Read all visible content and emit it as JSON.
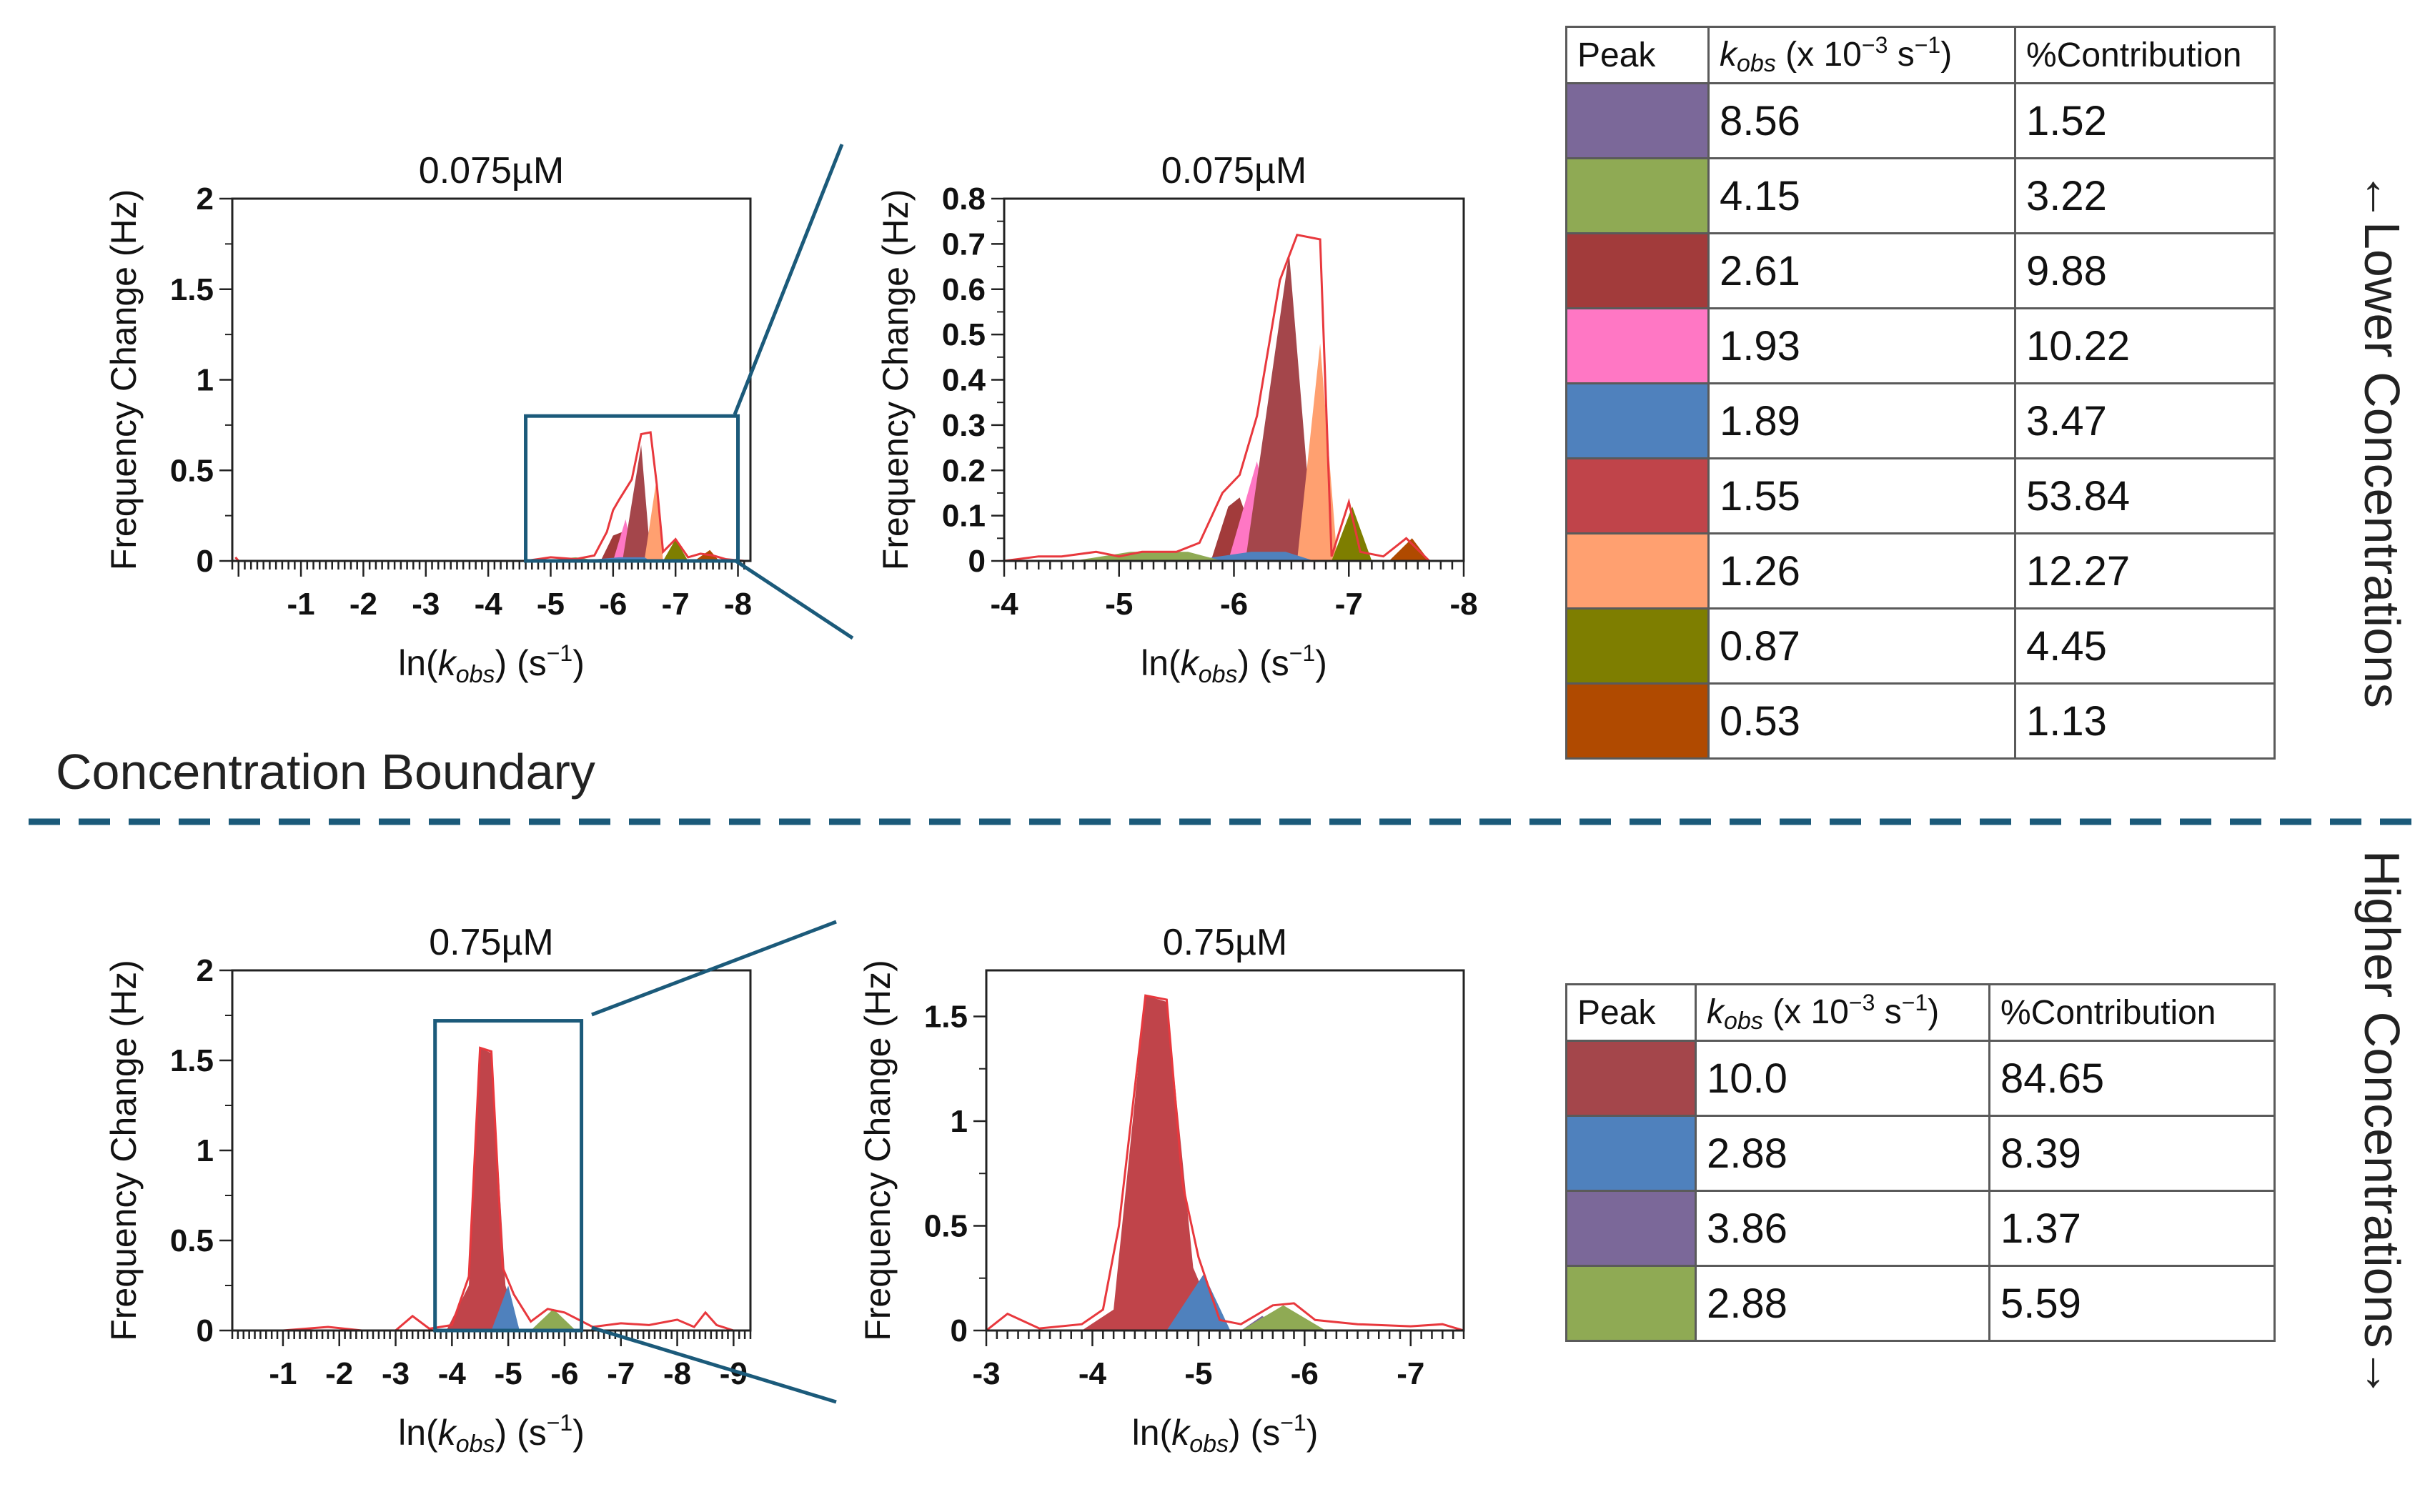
{
  "boundary_label": "Concentration Boundary",
  "side_labels": {
    "lower": "Lower Concentrations",
    "higher": "Higher Concentrations"
  },
  "axis_labels": {
    "ylabel": "Frequency Change (Hz)",
    "xlabel_prefix": "ln(",
    "xlabel_var": "k",
    "xlabel_sub": "obs",
    "xlabel_suffix": ") (s",
    "xlabel_exp": "−1",
    "xlabel_close": ")"
  },
  "tables": {
    "lower": {
      "headers": {
        "peak": "Peak",
        "k_var": "k",
        "k_sub": "obs",
        "k_unit_a": " (x 10",
        "k_exp": "−3",
        "k_unit_b": " s",
        "k_exp2": "−1",
        "k_close": ")",
        "contribution": "%Contribution"
      },
      "rows": [
        {
          "color": "#7b6899",
          "k": "8.56",
          "pct": "1.52"
        },
        {
          "color": "#8faa54",
          "k": "4.15",
          "pct": "3.22"
        },
        {
          "color": "#a23b3b",
          "k": "2.61",
          "pct": "9.88"
        },
        {
          "color": "#ff77c4",
          "k": "1.93",
          "pct": "10.22"
        },
        {
          "color": "#4f81bd",
          "k": "1.89",
          "pct": "3.47"
        },
        {
          "color": "#c0444a",
          "k": "1.55",
          "pct": "53.84"
        },
        {
          "color": "#ffa070",
          "k": "1.26",
          "pct": "12.27"
        },
        {
          "color": "#7e7e00",
          "k": "0.87",
          "pct": "4.45"
        },
        {
          "color": "#b04a00",
          "k": "0.53",
          "pct": "1.13"
        }
      ]
    },
    "higher": {
      "headers": {
        "peak": "Peak",
        "k_var": "k",
        "k_sub": "obs",
        "k_unit_a": " (x 10",
        "k_exp": "−3",
        "k_unit_b": " s",
        "k_exp2": "−1",
        "k_close": ")",
        "contribution": "%Contribution"
      },
      "rows": [
        {
          "color": "#a4464b",
          "k": "10.0",
          "pct": "84.65"
        },
        {
          "color": "#4f81bd",
          "k": "2.88",
          "pct": "8.39"
        },
        {
          "color": "#7b6899",
          "k": "3.86",
          "pct": "1.37"
        },
        {
          "color": "#8faa54",
          "k": "2.88",
          "pct": "5.59"
        }
      ]
    }
  },
  "chart_data": [
    {
      "id": "low_full",
      "type": "area",
      "title": "0.075µM",
      "xlim": [
        0.1,
        -8.2
      ],
      "ylim": [
        0,
        2
      ],
      "xticks": [
        -1,
        -2,
        -3,
        -4,
        -5,
        -6,
        -7,
        -8
      ],
      "yticks": [
        0,
        0.5,
        1,
        1.5,
        2
      ],
      "xtick_labels": [
        "-1",
        "-2",
        "-3",
        "-4",
        "-5",
        "-6",
        "-7",
        "-8"
      ],
      "ytick_labels": [
        "0",
        "0.5",
        "1",
        "1.5",
        "2"
      ],
      "zoom_box": {
        "x": [
          -4.6,
          -8.0
        ],
        "y": [
          0,
          0.8
        ]
      },
      "envelope": {
        "color": "#e8383d",
        "points": [
          [
            0.05,
            0.02
          ],
          [
            0.0,
            0
          ],
          [
            -4.6,
            0
          ],
          [
            -5.0,
            0.02
          ],
          [
            -5.4,
            0.01
          ],
          [
            -5.7,
            0.03
          ],
          [
            -5.9,
            0.16
          ],
          [
            -6.0,
            0.28
          ],
          [
            -6.1,
            0.34
          ],
          [
            -6.3,
            0.45
          ],
          [
            -6.45,
            0.7
          ],
          [
            -6.6,
            0.71
          ],
          [
            -6.7,
            0.42
          ],
          [
            -6.8,
            0.05
          ],
          [
            -7.0,
            0.12
          ],
          [
            -7.2,
            0.02
          ],
          [
            -7.4,
            0.04
          ],
          [
            -7.6,
            0.03
          ],
          [
            -7.8,
            0.01
          ],
          [
            -8.1,
            0
          ]
        ]
      },
      "peaks": [
        {
          "color": "#a23b3b",
          "points": [
            [
              -5.8,
              0
            ],
            [
              -6.0,
              0.14
            ],
            [
              -6.15,
              0.16
            ],
            [
              -6.25,
              0
            ]
          ]
        },
        {
          "color": "#ff77c4",
          "points": [
            [
              -6.0,
              0
            ],
            [
              -6.2,
              0.23
            ],
            [
              -6.35,
              0
            ]
          ]
        },
        {
          "color": "#a4464b",
          "points": [
            [
              -6.15,
              0
            ],
            [
              -6.45,
              0.64
            ],
            [
              -6.6,
              0.02
            ]
          ]
        },
        {
          "color": "#ffa070",
          "points": [
            [
              -6.5,
              0
            ],
            [
              -6.7,
              0.46
            ],
            [
              -6.8,
              0
            ]
          ]
        },
        {
          "color": "#4f81bd",
          "points": [
            [
              -5.4,
              0
            ],
            [
              -6.1,
              0.02
            ],
            [
              -6.5,
              0.02
            ],
            [
              -6.6,
              0
            ]
          ]
        },
        {
          "color": "#8faa54",
          "points": [
            [
              -4.8,
              0
            ],
            [
              -5.4,
              0.02
            ],
            [
              -5.8,
              0
            ]
          ]
        },
        {
          "color": "#7e7e00",
          "points": [
            [
              -6.8,
              0
            ],
            [
              -7.0,
              0.12
            ],
            [
              -7.2,
              0
            ]
          ]
        },
        {
          "color": "#b04a00",
          "points": [
            [
              -7.3,
              0
            ],
            [
              -7.55,
              0.06
            ],
            [
              -7.7,
              0
            ]
          ]
        }
      ]
    },
    {
      "id": "low_zoom",
      "type": "area",
      "title": "0.075µM",
      "xlim": [
        -4.0,
        -8.0
      ],
      "ylim": [
        0,
        0.8
      ],
      "xticks": [
        -4,
        -5,
        -6,
        -7,
        -8
      ],
      "yticks": [
        0,
        0.1,
        0.2,
        0.3,
        0.4,
        0.5,
        0.6,
        0.7,
        0.8
      ],
      "xtick_labels": [
        "-4",
        "-5",
        "-6",
        "-7",
        "-8"
      ],
      "ytick_labels": [
        "0",
        "0.1",
        "0.2",
        "0.3",
        "0.4",
        "0.5",
        "0.6",
        "0.7",
        "0.8"
      ],
      "envelope": {
        "color": "#e8383d",
        "points": [
          [
            -4.0,
            0
          ],
          [
            -4.3,
            0.01
          ],
          [
            -4.5,
            0.01
          ],
          [
            -4.8,
            0.02
          ],
          [
            -5.0,
            0.01
          ],
          [
            -5.2,
            0.02
          ],
          [
            -5.5,
            0.02
          ],
          [
            -5.7,
            0.04
          ],
          [
            -5.9,
            0.15
          ],
          [
            -6.05,
            0.19
          ],
          [
            -6.2,
            0.32
          ],
          [
            -6.4,
            0.62
          ],
          [
            -6.55,
            0.72
          ],
          [
            -6.75,
            0.71
          ],
          [
            -6.85,
            0.01
          ],
          [
            -7.0,
            0.13
          ],
          [
            -7.1,
            0.02
          ],
          [
            -7.3,
            0.01
          ],
          [
            -7.5,
            0.05
          ],
          [
            -7.7,
            0
          ],
          [
            -8.0,
            0
          ]
        ]
      },
      "peaks": [
        {
          "color": "#a23b3b",
          "points": [
            [
              -5.8,
              0
            ],
            [
              -5.95,
              0.12
            ],
            [
              -6.05,
              0.14
            ],
            [
              -6.25,
              0
            ]
          ]
        },
        {
          "color": "#ff77c4",
          "points": [
            [
              -5.95,
              0
            ],
            [
              -6.2,
              0.22
            ],
            [
              -6.4,
              0
            ]
          ]
        },
        {
          "color": "#a4464b",
          "points": [
            [
              -6.1,
              0
            ],
            [
              -6.48,
              0.68
            ],
            [
              -6.7,
              0
            ]
          ]
        },
        {
          "color": "#ffa070",
          "points": [
            [
              -6.55,
              0
            ],
            [
              -6.75,
              0.48
            ],
            [
              -6.9,
              0
            ]
          ]
        },
        {
          "color": "#4f81bd",
          "points": [
            [
              -5.6,
              0
            ],
            [
              -6.15,
              0.02
            ],
            [
              -6.45,
              0.02
            ],
            [
              -6.7,
              0
            ]
          ]
        },
        {
          "color": "#8faa54",
          "points": [
            [
              -4.6,
              0
            ],
            [
              -5.1,
              0.02
            ],
            [
              -5.6,
              0.02
            ],
            [
              -5.9,
              0
            ]
          ]
        },
        {
          "color": "#7e7e00",
          "points": [
            [
              -6.85,
              0
            ],
            [
              -7.03,
              0.12
            ],
            [
              -7.2,
              0
            ]
          ]
        },
        {
          "color": "#b04a00",
          "points": [
            [
              -7.35,
              0
            ],
            [
              -7.55,
              0.05
            ],
            [
              -7.7,
              0
            ]
          ]
        }
      ]
    },
    {
      "id": "high_full",
      "type": "area",
      "title": "0.75µM",
      "xlim": [
        -0.1,
        -9.3
      ],
      "ylim": [
        0,
        2
      ],
      "xticks": [
        -1,
        -2,
        -3,
        -4,
        -5,
        -6,
        -7,
        -8,
        -9
      ],
      "yticks": [
        0,
        0.5,
        1,
        1.5,
        2
      ],
      "xtick_labels": [
        "-1",
        "-2",
        "-3",
        "-4",
        "-5",
        "-6",
        "-7",
        "-8",
        "-9"
      ],
      "ytick_labels": [
        "0",
        "0.5",
        "1",
        "1.5",
        "2"
      ],
      "zoom_box": {
        "x": [
          -3.7,
          -6.3
        ],
        "y": [
          0,
          1.72
        ]
      },
      "envelope": {
        "color": "#e8383d",
        "points": [
          [
            -0.1,
            0
          ],
          [
            -1.0,
            0
          ],
          [
            -1.8,
            0.02
          ],
          [
            -2.4,
            0
          ],
          [
            -3.0,
            0
          ],
          [
            -3.3,
            0.08
          ],
          [
            -3.6,
            0.01
          ],
          [
            -4.0,
            0.03
          ],
          [
            -4.3,
            0.3
          ],
          [
            -4.5,
            1.57
          ],
          [
            -4.7,
            1.55
          ],
          [
            -4.9,
            0.35
          ],
          [
            -5.1,
            0.2
          ],
          [
            -5.4,
            0.05
          ],
          [
            -5.7,
            0.12
          ],
          [
            -6.0,
            0.1
          ],
          [
            -6.5,
            0.02
          ],
          [
            -7.0,
            0.04
          ],
          [
            -7.5,
            0.03
          ],
          [
            -8.0,
            0.06
          ],
          [
            -8.3,
            0.02
          ],
          [
            -8.5,
            0.1
          ],
          [
            -8.7,
            0.03
          ],
          [
            -9.0,
            0
          ]
        ]
      },
      "peaks": [
        {
          "color": "#c0444a",
          "points": [
            [
              -3.9,
              0
            ],
            [
              -4.3,
              0.25
            ],
            [
              -4.5,
              1.57
            ],
            [
              -4.7,
              1.54
            ],
            [
              -4.95,
              0.25
            ],
            [
              -5.2,
              0
            ]
          ]
        },
        {
          "color": "#4f81bd",
          "points": [
            [
              -4.7,
              0
            ],
            [
              -5.0,
              0.25
            ],
            [
              -5.2,
              0
            ]
          ]
        },
        {
          "color": "#7b6899",
          "points": [
            [
              -5.4,
              0
            ],
            [
              -5.6,
              0.06
            ],
            [
              -5.8,
              0
            ]
          ]
        },
        {
          "color": "#8faa54",
          "points": [
            [
              -5.4,
              0
            ],
            [
              -5.8,
              0.12
            ],
            [
              -6.2,
              0
            ]
          ]
        }
      ]
    },
    {
      "id": "high_zoom",
      "type": "area",
      "title": "0.75µM",
      "xlim": [
        -3.0,
        -7.5
      ],
      "ylim": [
        0,
        1.72
      ],
      "xticks": [
        -3,
        -4,
        -5,
        -6,
        -7
      ],
      "yticks": [
        0,
        0.5,
        1,
        1.5
      ],
      "xtick_labels": [
        "-3",
        "-4",
        "-5",
        "-6",
        "-7"
      ],
      "ytick_labels": [
        "0",
        "0.5",
        "1",
        "1.5"
      ],
      "envelope": {
        "color": "#e8383d",
        "points": [
          [
            -3.0,
            0
          ],
          [
            -3.2,
            0.08
          ],
          [
            -3.5,
            0.01
          ],
          [
            -3.9,
            0.03
          ],
          [
            -4.1,
            0.1
          ],
          [
            -4.25,
            0.5
          ],
          [
            -4.5,
            1.6
          ],
          [
            -4.7,
            1.58
          ],
          [
            -4.85,
            0.7
          ],
          [
            -5.0,
            0.35
          ],
          [
            -5.2,
            0.05
          ],
          [
            -5.4,
            0.03
          ],
          [
            -5.7,
            0.12
          ],
          [
            -5.9,
            0.13
          ],
          [
            -6.1,
            0.05
          ],
          [
            -6.5,
            0.03
          ],
          [
            -7.0,
            0.02
          ],
          [
            -7.3,
            0.03
          ],
          [
            -7.5,
            0
          ]
        ]
      },
      "peaks": [
        {
          "color": "#c0444a",
          "points": [
            [
              -3.9,
              0
            ],
            [
              -4.2,
              0.1
            ],
            [
              -4.5,
              1.6
            ],
            [
              -4.7,
              1.57
            ],
            [
              -4.95,
              0.3
            ],
            [
              -5.2,
              0
            ]
          ]
        },
        {
          "color": "#4f81bd",
          "points": [
            [
              -4.7,
              0
            ],
            [
              -5.05,
              0.27
            ],
            [
              -5.3,
              0
            ]
          ]
        },
        {
          "color": "#7b6899",
          "points": [
            [
              -5.4,
              0
            ],
            [
              -5.6,
              0.07
            ],
            [
              -5.8,
              0
            ]
          ]
        },
        {
          "color": "#8faa54",
          "points": [
            [
              -5.4,
              0
            ],
            [
              -5.8,
              0.12
            ],
            [
              -6.2,
              0
            ]
          ]
        }
      ]
    }
  ]
}
